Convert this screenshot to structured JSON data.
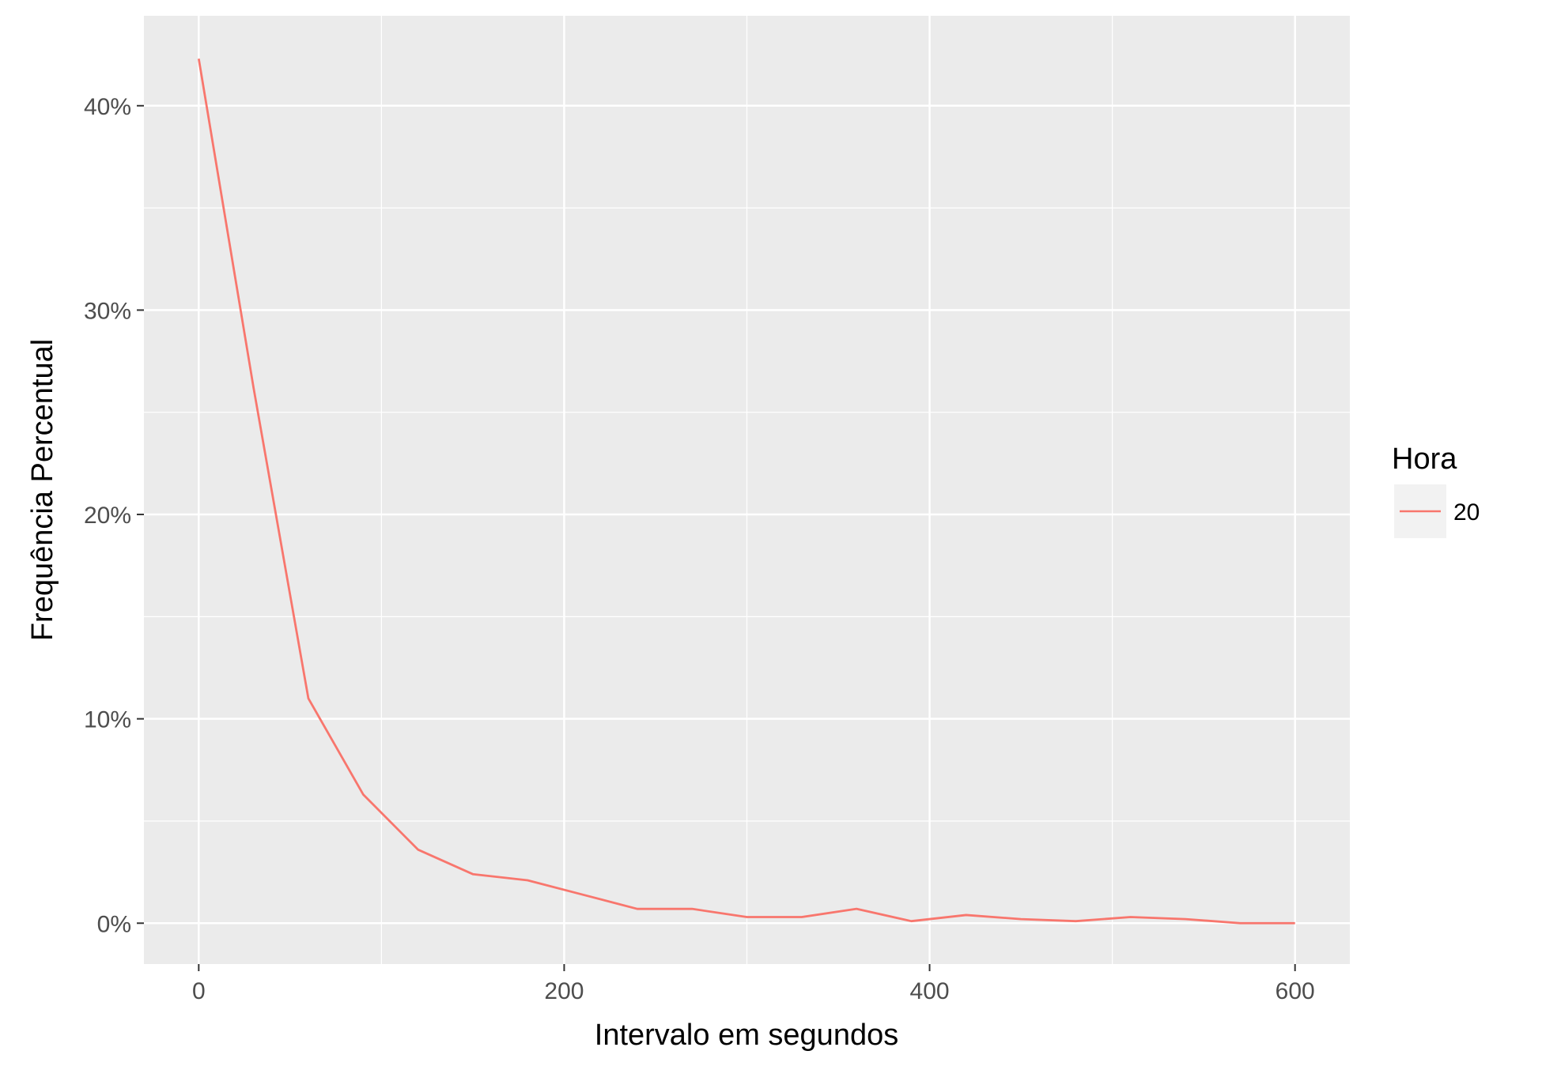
{
  "chart_data": {
    "type": "line",
    "xlabel": "Intervalo em segundos",
    "ylabel": "Frequência Percentual",
    "xlim": [
      -30,
      630
    ],
    "ylim": [
      -2,
      44.4
    ],
    "x_ticks": [
      0,
      200,
      400,
      600
    ],
    "x_minor_ticks": [
      100,
      300,
      500
    ],
    "y_ticks": [
      0,
      10,
      20,
      30,
      40
    ],
    "y_tick_labels": [
      "0%",
      "10%",
      "20%",
      "30%",
      "40%"
    ],
    "y_minor_ticks": [
      5,
      15,
      25,
      35
    ],
    "grid": true,
    "legend": {
      "title": "Hora",
      "position": "right"
    },
    "series": [
      {
        "name": "20",
        "color": "#F8766D",
        "x": [
          0,
          30,
          60,
          90,
          120,
          150,
          180,
          210,
          240,
          270,
          300,
          330,
          360,
          390,
          420,
          450,
          480,
          510,
          540,
          570,
          600
        ],
        "y": [
          42.3,
          26.2,
          11.0,
          6.3,
          3.6,
          2.4,
          2.1,
          1.4,
          0.7,
          0.7,
          0.3,
          0.3,
          0.7,
          0.1,
          0.4,
          0.2,
          0.1,
          0.3,
          0.2,
          0.0,
          0.0
        ]
      }
    ]
  }
}
